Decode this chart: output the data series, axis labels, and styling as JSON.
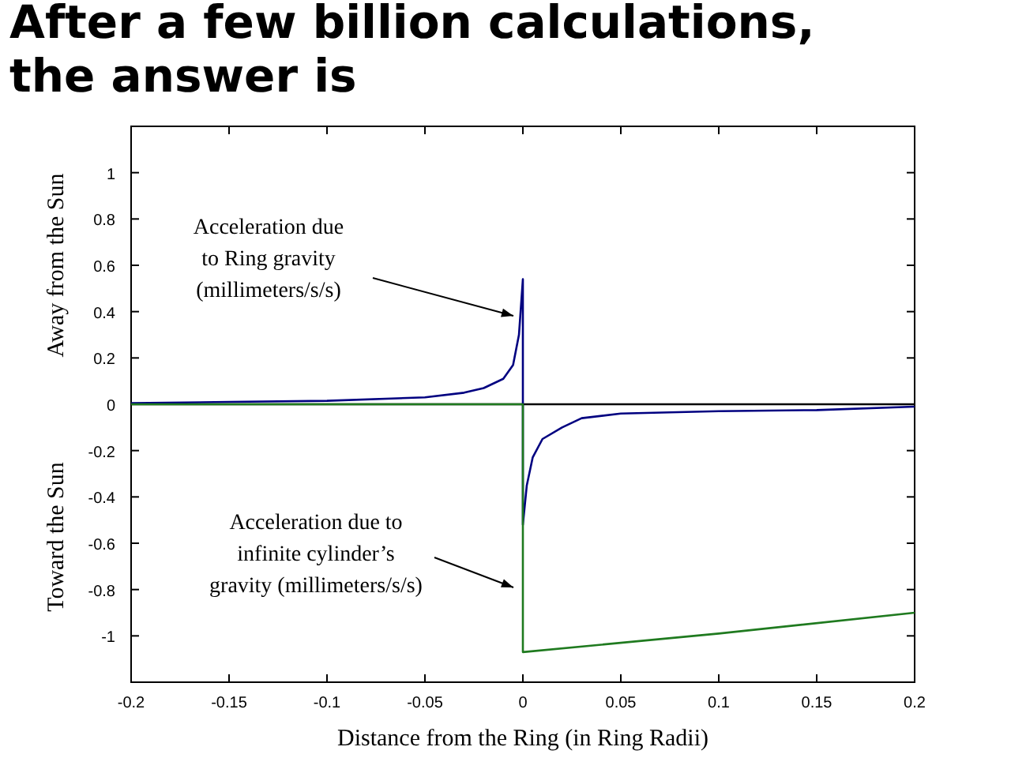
{
  "chart_data": {
    "type": "line",
    "title": "After a few billion calculations,\nthe answer is",
    "xlabel": "Distance from the Ring (in Ring Radii)",
    "ylabel": "Away from the Sun",
    "xlim": [
      -0.2,
      0.2
    ],
    "xticks": [
      -0.2,
      -0.15,
      -0.1,
      -0.05,
      0,
      0.05,
      0.1,
      0.15,
      0.2
    ],
    "ylim": [
      -1.2,
      1.2
    ],
    "yticks": [
      -1,
      -0.8,
      -0.6,
      -0.4,
      -0.2,
      0,
      0.2,
      0.4,
      0.6,
      0.8,
      1
    ],
    "grid": false,
    "marker": "none",
    "line_style": "solid",
    "ref_lines": [
      {
        "axis": "y",
        "value": 0,
        "color": "#000000"
      }
    ],
    "series": [
      {
        "color": "#000080",
        "x": [
          -0.2,
          -0.15,
          -0.1,
          -0.05,
          -0.03,
          -0.02,
          -0.01,
          -0.005,
          -0.002,
          0,
          0,
          0.002,
          0.005,
          0.01,
          0.02,
          0.03,
          0.05,
          0.1,
          0.15,
          0.2
        ],
        "values": [
          0.005,
          0.01,
          0.015,
          0.03,
          0.05,
          0.07,
          0.11,
          0.17,
          0.3,
          0.54,
          -0.52,
          -0.35,
          -0.23,
          -0.15,
          -0.1,
          -0.06,
          -0.04,
          -0.03,
          -0.025,
          -0.01
        ]
      },
      {
        "color": "#1f7a1f",
        "x": [
          -0.2,
          0,
          0,
          0.1,
          0.2
        ],
        "values": [
          0,
          0,
          -1.07,
          -0.99,
          -0.9
        ]
      }
    ],
    "annotations": [
      "Acceleration due\nto Ring gravity\n(millimeters/s/s)",
      "Acceleration due to\ninfinite cylinder’s\ngravity (millimeters/s/s)",
      "Toward the Sun"
    ]
  }
}
